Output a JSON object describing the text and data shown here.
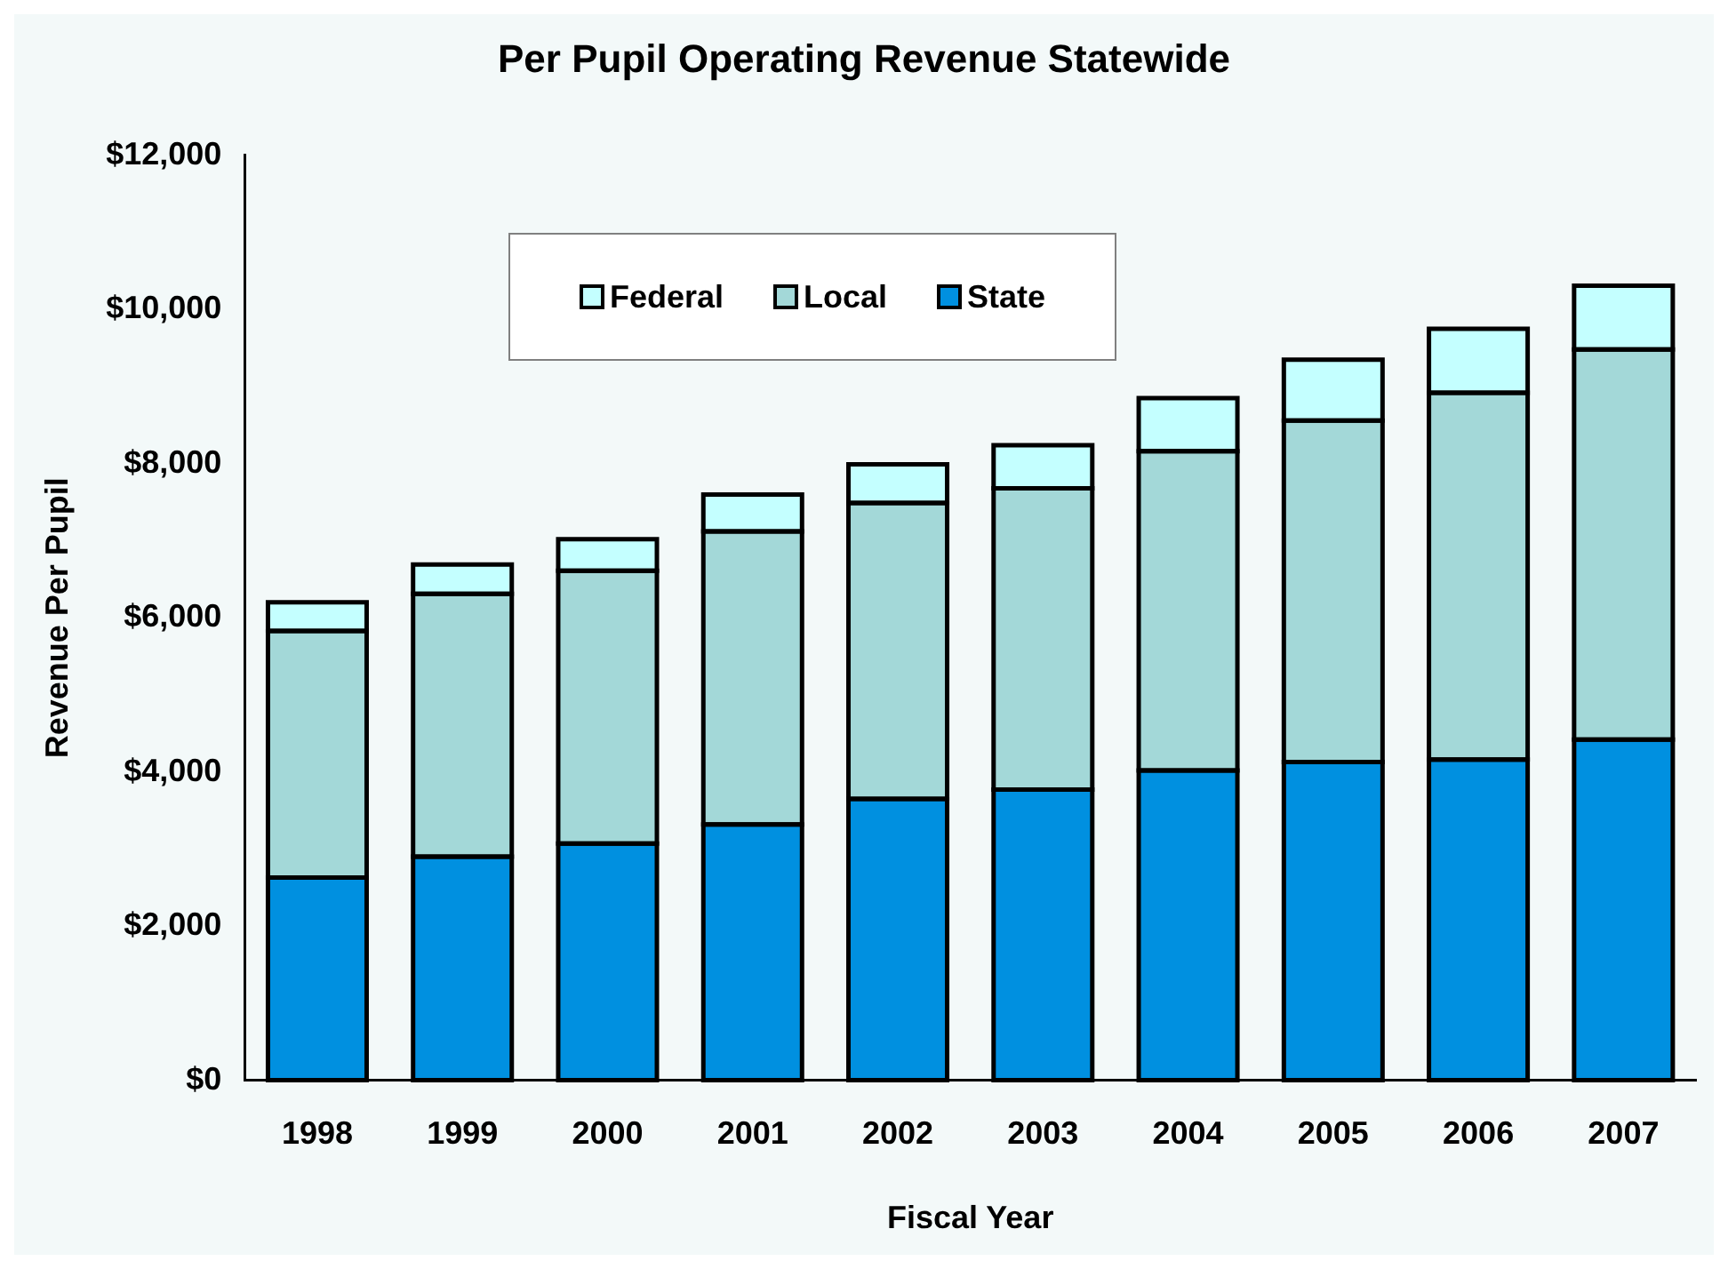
{
  "chart_data": {
    "type": "bar",
    "title": "Per Pupil Operating Revenue Statewide",
    "xlabel": "Fiscal Year",
    "ylabel": "Revenue Per Pupil",
    "categories": [
      "1998",
      "1999",
      "2000",
      "2001",
      "2002",
      "2003",
      "2004",
      "2005",
      "2006",
      "2007"
    ],
    "stacked": true,
    "legend": "top",
    "ylim": [
      0,
      12000
    ],
    "yticks": [
      {
        "value": 0,
        "label": "$0"
      },
      {
        "value": 2000,
        "label": "$2,000"
      },
      {
        "value": 4000,
        "label": "$4,000"
      },
      {
        "value": 6000,
        "label": "$6,000"
      },
      {
        "value": 8000,
        "label": "$8,000"
      },
      {
        "value": 10000,
        "label": "$10,000"
      },
      {
        "value": 12000,
        "label": "$12,000"
      }
    ],
    "series": [
      {
        "name": "State",
        "color": "#0090e0",
        "values": [
          2630,
          2900,
          3070,
          3320,
          3650,
          3770,
          4020,
          4130,
          4160,
          4420
        ]
      },
      {
        "name": "Local",
        "color": "#a3d8d8",
        "values": [
          3200,
          3410,
          3540,
          3800,
          3840,
          3910,
          4140,
          4430,
          4760,
          5060
        ]
      },
      {
        "name": "Federal",
        "color": "#c4ffff",
        "values": [
          370,
          380,
          410,
          480,
          500,
          560,
          690,
          790,
          830,
          830
        ]
      }
    ]
  }
}
